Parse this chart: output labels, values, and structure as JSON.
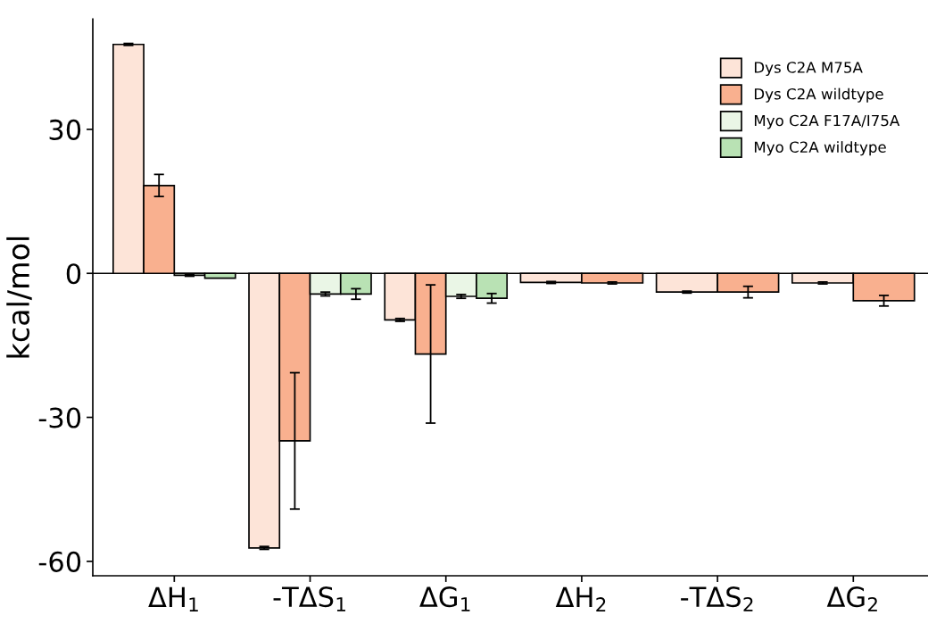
{
  "chart_data": {
    "type": "bar",
    "ylabel": "kcal/mol",
    "categories": [
      "ΔH$_{1}$",
      "-TΔS$_{1}$",
      "ΔG$_{1}$",
      "ΔH$_{2}$",
      "-TΔS$_{2}$",
      "ΔG$_{2}$"
    ],
    "series": [
      {
        "name": "Dys C2A M75A",
        "color": "#fde4d8",
        "values": [
          47.7,
          -57.2,
          -9.7,
          -1.9,
          -3.9,
          -2.0
        ],
        "errors": [
          0.2,
          0.3,
          0.3,
          0.2,
          0.2,
          0.2
        ]
      },
      {
        "name": "Dys C2A wildtype",
        "color": "#f9b08f",
        "values": [
          18.3,
          -34.9,
          -16.8,
          -2.0,
          -3.9,
          -5.7
        ],
        "errors": [
          2.3,
          14.2,
          14.4,
          0.2,
          1.2,
          1.1
        ]
      },
      {
        "name": "Myo C2A F17A/I75A",
        "color": "#eaf6e6",
        "values": [
          -0.4,
          -4.3,
          -4.8,
          null,
          null,
          null
        ],
        "errors": [
          0.2,
          0.4,
          0.4,
          null,
          null,
          null
        ]
      },
      {
        "name": "Myo C2A wildtype",
        "color": "#b9e2b4",
        "values": [
          -1.0,
          -4.3,
          -5.2,
          null,
          null,
          null
        ],
        "errors": [
          null,
          1.1,
          1.0,
          null,
          null,
          null
        ]
      }
    ],
    "ylim": [
      -63,
      53
    ],
    "yticks": [
      -60,
      -30,
      0,
      30
    ],
    "ref_lines": [
      {
        "axis": "y",
        "value": 0,
        "color": "#000000"
      }
    ],
    "grid": false,
    "legend": "top right"
  }
}
